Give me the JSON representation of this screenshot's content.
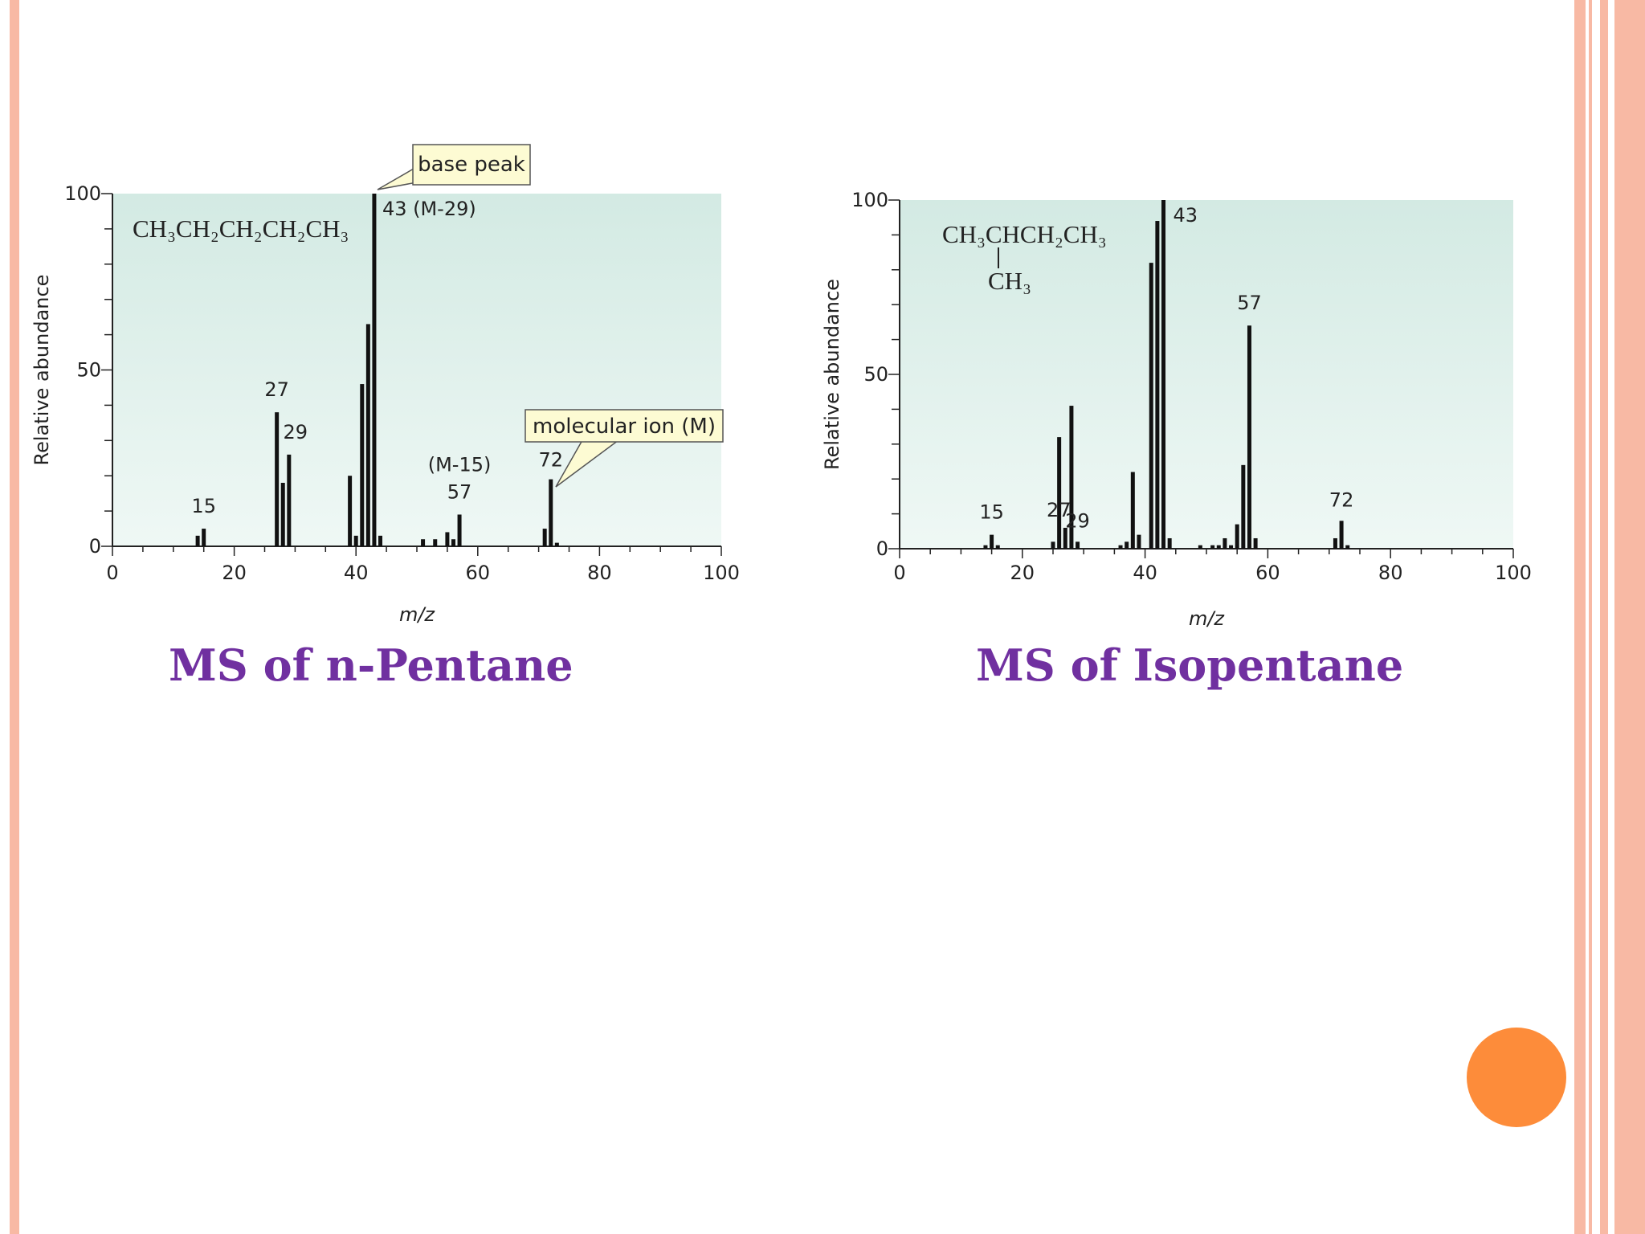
{
  "slide": {
    "caption_left": "MS of n-Pentane",
    "caption_right": "MS of Isopentane",
    "colors": {
      "caption": "#7030a0",
      "border": "#f8b9a4",
      "dot": "#fd8c3a",
      "plot_bg_top": "#d3eae3",
      "plot_bg_bottom": "#eff8f5"
    }
  },
  "chart_data": [
    {
      "type": "bar",
      "xlabel": "m/z",
      "ylabel": "Relative abundance",
      "xlim": [
        0,
        100
      ],
      "ylim": [
        0,
        100
      ],
      "x_ticks": [
        "0",
        "20",
        "40",
        "60",
        "80",
        "100"
      ],
      "y_ticks": [
        "0",
        "50",
        "100"
      ],
      "formula": {
        "main": "CH₃CH₂CH₂CH₂CH₃",
        "branch": ""
      },
      "x": [
        14,
        15,
        27,
        28,
        29,
        39,
        40,
        41,
        42,
        43,
        44,
        51,
        53,
        55,
        56,
        57,
        71,
        72,
        73
      ],
      "values": [
        3,
        5,
        38,
        18,
        26,
        20,
        3,
        46,
        63,
        100,
        3,
        2,
        2,
        4,
        2,
        9,
        5,
        19,
        1
      ],
      "peak_labels": [
        {
          "x": 15,
          "text": "15"
        },
        {
          "x": 27,
          "text": "27"
        },
        {
          "x": 29,
          "text": "29"
        },
        {
          "x": 43,
          "text": "43 (M-29)"
        },
        {
          "x": 57,
          "text": "57"
        },
        {
          "x": 57,
          "text": "(M-15)"
        },
        {
          "x": 72,
          "text": "72"
        }
      ],
      "callouts": [
        "base peak",
        "molecular ion (M)"
      ]
    },
    {
      "type": "bar",
      "xlabel": "m/z",
      "ylabel": "Relative abundance",
      "xlim": [
        0,
        100
      ],
      "ylim": [
        0,
        100
      ],
      "x_ticks": [
        "0",
        "20",
        "40",
        "60",
        "80",
        "100"
      ],
      "y_ticks": [
        "0",
        "50",
        "100"
      ],
      "formula": {
        "main": "CH₃CHCH₂CH₃",
        "branch": "CH₃"
      },
      "x": [
        14,
        15,
        16,
        25,
        26,
        27,
        28,
        29,
        36,
        37,
        38,
        39,
        41,
        42,
        43,
        44,
        49,
        51,
        52,
        53,
        54,
        55,
        56,
        57,
        58,
        71,
        72,
        73
      ],
      "values": [
        1,
        4,
        1,
        2,
        32,
        6,
        41,
        2,
        1,
        2,
        22,
        4,
        82,
        94,
        100,
        3,
        1,
        1,
        1,
        3,
        1,
        7,
        24,
        64,
        3,
        3,
        8,
        1
      ],
      "peak_labels": [
        {
          "x": 15,
          "text": "15"
        },
        {
          "x": 27,
          "text": "27"
        },
        {
          "x": 29,
          "text": "29"
        },
        {
          "x": 43,
          "text": "43"
        },
        {
          "x": 57,
          "text": "57"
        },
        {
          "x": 72,
          "text": "72"
        }
      ],
      "callouts": []
    }
  ]
}
